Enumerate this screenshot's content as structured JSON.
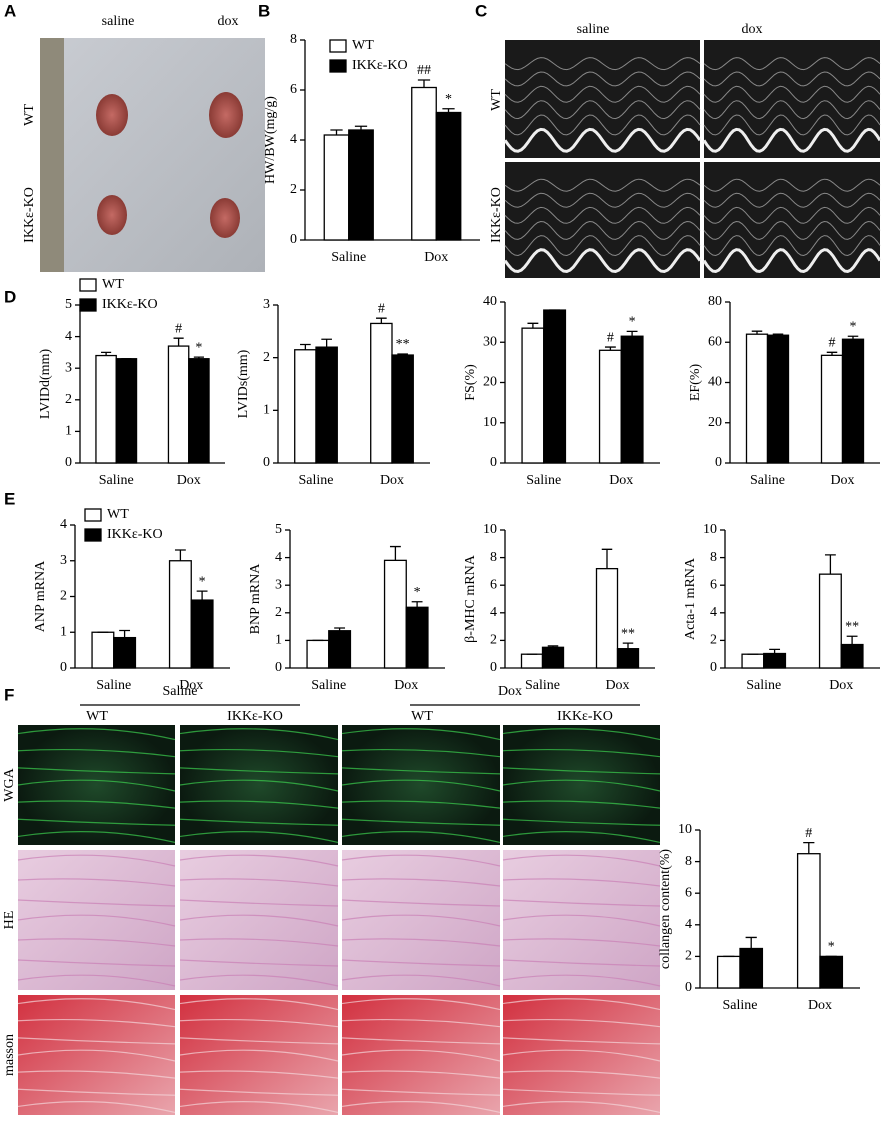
{
  "panel_labels": [
    "A",
    "B",
    "C",
    "D",
    "E",
    "F"
  ],
  "images": {
    "A": {
      "columns": [
        "saline",
        "dox"
      ],
      "rows": [
        "WT",
        "IKKε-KO"
      ]
    },
    "C": {
      "columns": [
        "saline",
        "dox"
      ],
      "rows": [
        "WT",
        "IKKε-KO"
      ]
    },
    "F": {
      "groups": [
        {
          "label": "Saline",
          "columns": [
            "WT",
            "IKKε-KO"
          ]
        },
        {
          "label": "Dox",
          "columns": [
            "WT",
            "IKKε-KO"
          ]
        }
      ],
      "rows": [
        "WGA",
        "HE",
        "masson"
      ]
    }
  },
  "chart_data": [
    {
      "type": "bar",
      "ylabel": "HW/BW(mg/g)",
      "categories": [
        "Saline",
        "Dox"
      ],
      "ylim": [
        0,
        8
      ],
      "yticks": [
        0,
        2,
        4,
        6,
        8
      ],
      "legend": "upper-left",
      "series": [
        {
          "name": "WT",
          "color": "#ffffff",
          "values": [
            4.2,
            6.1
          ],
          "errors": [
            0.2,
            0.3
          ],
          "annotations": [
            null,
            "##"
          ]
        },
        {
          "name": "IKKε-KO",
          "color": "#000000",
          "values": [
            4.4,
            5.1
          ],
          "errors": [
            0.15,
            0.15
          ],
          "annotations": [
            null,
            "*"
          ]
        }
      ]
    },
    {
      "type": "bar",
      "ylabel": "LVIDd(mm)",
      "categories": [
        "Saline",
        "Dox"
      ],
      "ylim": [
        0,
        5
      ],
      "yticks": [
        0,
        1,
        2,
        3,
        4,
        5
      ],
      "legend": "upper-left",
      "series": [
        {
          "name": "WT",
          "color": "#ffffff",
          "values": [
            3.4,
            3.7
          ],
          "errors": [
            0.1,
            0.25
          ],
          "annotations": [
            null,
            "#"
          ]
        },
        {
          "name": "IKKε-KO",
          "color": "#000000",
          "values": [
            3.3,
            3.3
          ],
          "errors": [
            0,
            0.05
          ],
          "annotations": [
            null,
            "*"
          ]
        }
      ]
    },
    {
      "type": "bar",
      "ylabel": "LVIDs(mm)",
      "categories": [
        "Saline",
        "Dox"
      ],
      "ylim": [
        0,
        3
      ],
      "yticks": [
        0,
        1,
        2,
        3
      ],
      "series": [
        {
          "color": "#ffffff",
          "values": [
            2.15,
            2.65
          ],
          "errors": [
            0.1,
            0.1
          ],
          "annotations": [
            null,
            "#"
          ]
        },
        {
          "color": "#000000",
          "values": [
            2.2,
            2.05
          ],
          "errors": [
            0.15,
            0.02
          ],
          "annotations": [
            null,
            "**"
          ]
        }
      ]
    },
    {
      "type": "bar",
      "ylabel": "FS(%)",
      "categories": [
        "Saline",
        "Dox"
      ],
      "ylim": [
        0,
        40
      ],
      "yticks": [
        0,
        10,
        20,
        30,
        40
      ],
      "series": [
        {
          "color": "#ffffff",
          "values": [
            33.5,
            28
          ],
          "errors": [
            1.2,
            0.8
          ],
          "annotations": [
            null,
            "#"
          ]
        },
        {
          "color": "#000000",
          "values": [
            38,
            31.5
          ],
          "errors": [
            0,
            1.2
          ],
          "annotations": [
            null,
            "*"
          ]
        }
      ]
    },
    {
      "type": "bar",
      "ylabel": "EF(%)",
      "categories": [
        "Saline",
        "Dox"
      ],
      "ylim": [
        0,
        80
      ],
      "yticks": [
        0,
        20,
        40,
        60,
        80
      ],
      "series": [
        {
          "color": "#ffffff",
          "values": [
            64,
            53.5
          ],
          "errors": [
            1.5,
            1.5
          ],
          "annotations": [
            null,
            "#"
          ]
        },
        {
          "color": "#000000",
          "values": [
            63.5,
            61.5
          ],
          "errors": [
            0.5,
            1.5
          ],
          "annotations": [
            null,
            "*"
          ]
        }
      ]
    },
    {
      "type": "bar",
      "ylabel": "ANP mRNA",
      "categories": [
        "Saline",
        "Dox"
      ],
      "ylim": [
        0,
        4
      ],
      "yticks": [
        0,
        1,
        2,
        3,
        4
      ],
      "legend": "upper-left",
      "series": [
        {
          "name": "WT",
          "color": "#ffffff",
          "values": [
            1,
            3.0
          ],
          "errors": [
            0,
            0.3
          ],
          "annotations": [
            null,
            null
          ]
        },
        {
          "name": "IKKε-KO",
          "color": "#000000",
          "values": [
            0.85,
            1.9
          ],
          "errors": [
            0.2,
            0.25
          ],
          "annotations": [
            null,
            "*"
          ]
        }
      ]
    },
    {
      "type": "bar",
      "ylabel": "BNP mRNA",
      "categories": [
        "Saline",
        "Dox"
      ],
      "ylim": [
        0,
        5
      ],
      "yticks": [
        0,
        1,
        2,
        3,
        4,
        5
      ],
      "series": [
        {
          "color": "#ffffff",
          "values": [
            1,
            3.9
          ],
          "errors": [
            0,
            0.5
          ],
          "annotations": [
            null,
            null
          ]
        },
        {
          "color": "#000000",
          "values": [
            1.35,
            2.2
          ],
          "errors": [
            0.1,
            0.2
          ],
          "annotations": [
            null,
            "*"
          ]
        }
      ]
    },
    {
      "type": "bar",
      "ylabel": "β-MHC mRNA",
      "categories": [
        "Saline",
        "Dox"
      ],
      "ylim": [
        0,
        10
      ],
      "yticks": [
        0,
        2,
        4,
        6,
        8,
        10
      ],
      "series": [
        {
          "color": "#ffffff",
          "values": [
            1,
            7.2
          ],
          "errors": [
            0,
            1.4
          ],
          "annotations": [
            null,
            null
          ]
        },
        {
          "color": "#000000",
          "values": [
            1.5,
            1.4
          ],
          "errors": [
            0.1,
            0.4
          ],
          "annotations": [
            null,
            "**"
          ]
        }
      ]
    },
    {
      "type": "bar",
      "ylabel": "Acta-1 mRNA",
      "categories": [
        "Saline",
        "Dox"
      ],
      "ylim": [
        0,
        10
      ],
      "yticks": [
        0,
        2,
        4,
        6,
        8,
        10
      ],
      "series": [
        {
          "color": "#ffffff",
          "values": [
            1,
            6.8
          ],
          "errors": [
            0,
            1.4
          ],
          "annotations": [
            null,
            null
          ]
        },
        {
          "color": "#000000",
          "values": [
            1.05,
            1.7
          ],
          "errors": [
            0.3,
            0.6
          ],
          "annotations": [
            null,
            "**"
          ]
        }
      ]
    },
    {
      "type": "bar",
      "ylabel": "collangen content(%)",
      "categories": [
        "Saline",
        "Dox"
      ],
      "ylim": [
        0,
        10
      ],
      "yticks": [
        0,
        2,
        4,
        6,
        8,
        10
      ],
      "series": [
        {
          "color": "#ffffff",
          "values": [
            2.0,
            8.5
          ],
          "errors": [
            0,
            0.7
          ],
          "annotations": [
            null,
            "#"
          ]
        },
        {
          "color": "#000000",
          "values": [
            2.5,
            2.0
          ],
          "errors": [
            0.7,
            0
          ],
          "annotations": [
            null,
            "*"
          ]
        }
      ]
    }
  ]
}
